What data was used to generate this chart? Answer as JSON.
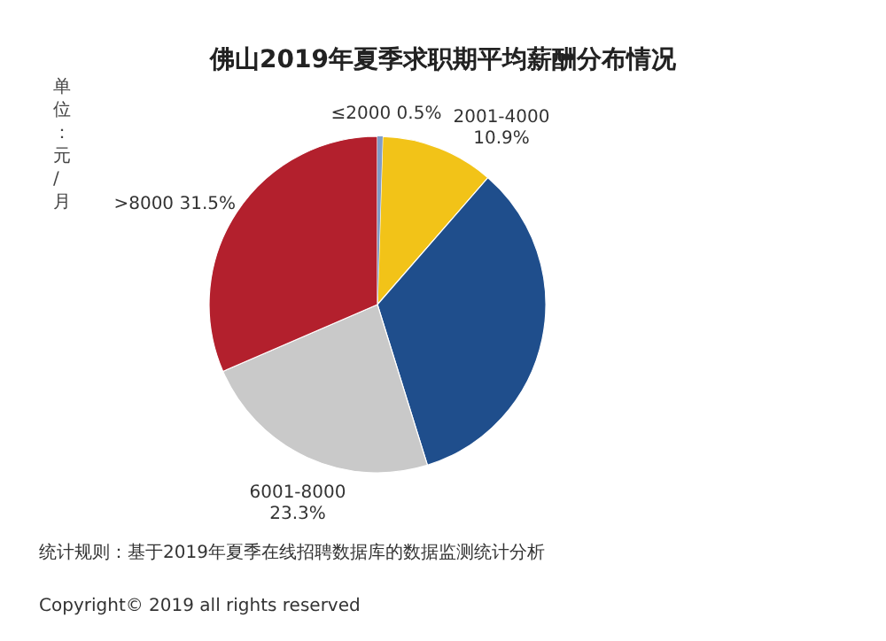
{
  "chart_data": {
    "type": "pie",
    "title": "佛山2019年夏季求职期平均薪酬分布情况",
    "categories": [
      "≤2000",
      "2001-4000",
      null,
      "6001-8000",
      ">8000"
    ],
    "values": [
      0.5,
      10.9,
      33.8,
      23.3,
      31.5
    ],
    "value_labels": [
      "0.5%",
      "10.9%",
      null,
      "23.3%",
      "31.5%"
    ],
    "colors": [
      "#7f9cc7",
      "#f2c318",
      "#1f4e8c",
      "#c9c9c9",
      "#b3202d"
    ],
    "annotations": [
      "单位：元/月",
      "统计规则：基于2019年夏季在线招聘数据库的数据监测统计分析",
      "Copyright© 2019 all rights reserved"
    ]
  }
}
